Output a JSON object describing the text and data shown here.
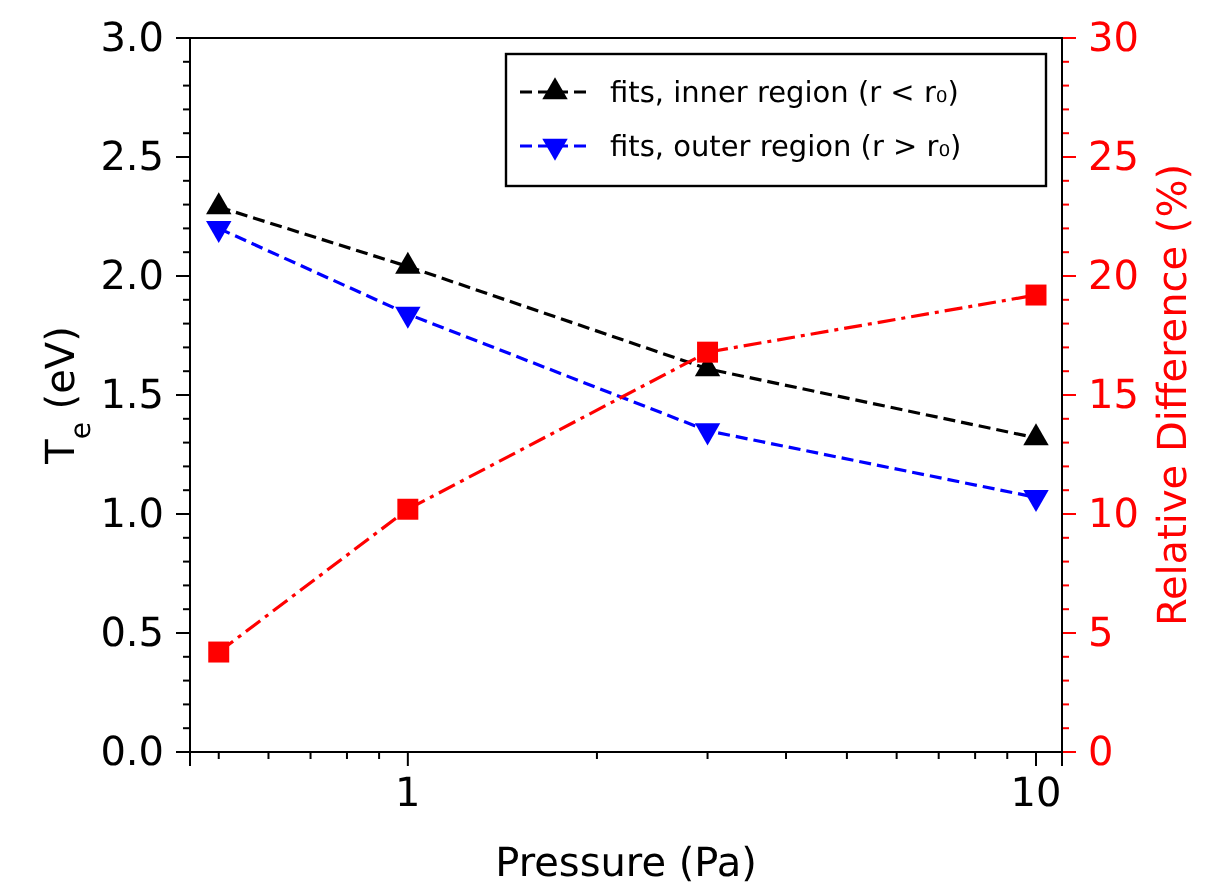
{
  "chart_data": {
    "type": "line",
    "xlabel": "Pressure (Pa)",
    "ylabel": "T$_{e}$ (eV)",
    "y2label": "Relative Difference (%)",
    "x": [
      0.5,
      1,
      3,
      10
    ],
    "log": "x",
    "xlim": [
      0.45,
      11
    ],
    "xticks": [
      {
        "value": 0.5,
        "label": null
      },
      {
        "value": 0.6,
        "label": null
      },
      {
        "value": 0.7,
        "label": null
      },
      {
        "value": 0.8,
        "label": null
      },
      {
        "value": 0.9,
        "label": null
      },
      1,
      {
        "value": 2,
        "label": null
      },
      {
        "value": 3,
        "label": null
      },
      {
        "value": 4,
        "label": null
      },
      {
        "value": 5,
        "label": null
      },
      {
        "value": 6,
        "label": null
      },
      {
        "value": 7,
        "label": null
      },
      {
        "value": 8,
        "label": null
      },
      {
        "value": 9,
        "label": null
      },
      10
    ],
    "ylim": [
      0,
      3
    ],
    "yticks": [
      {
        "value": 0,
        "label": "0.0"
      },
      {
        "value": 0.5,
        "label": "0.5"
      },
      {
        "value": 1,
        "label": "1.0"
      },
      {
        "value": 1.5,
        "label": "1.5"
      },
      {
        "value": 2,
        "label": "2.0"
      },
      {
        "value": 2.5,
        "label": "2.5"
      },
      {
        "value": 3,
        "label": "3.0"
      }
    ],
    "y2lim": [
      0,
      30
    ],
    "y2ticks": [
      0,
      5,
      10,
      15,
      20,
      25,
      30
    ],
    "legend": "top right",
    "grid": false,
    "series": [
      {
        "name": "fits, inner region (r < r₀)",
        "color": "#000000",
        "values": [
          2.29,
          2.04,
          1.61,
          1.32
        ],
        "marker": "triangle",
        "line_style": "dashed"
      },
      {
        "name": "fits, outer region (r > r₀)",
        "color": "#0000ff",
        "values": [
          2.2,
          1.84,
          1.35,
          1.07
        ],
        "marker": "triangle-down",
        "line_style": "dashed"
      },
      {
        "color": "#ff0000",
        "values": [
          4.2,
          10.2,
          16.8,
          19.2
        ],
        "marker": "square",
        "line_style": "dashdot",
        "axis": "y2"
      }
    ]
  }
}
